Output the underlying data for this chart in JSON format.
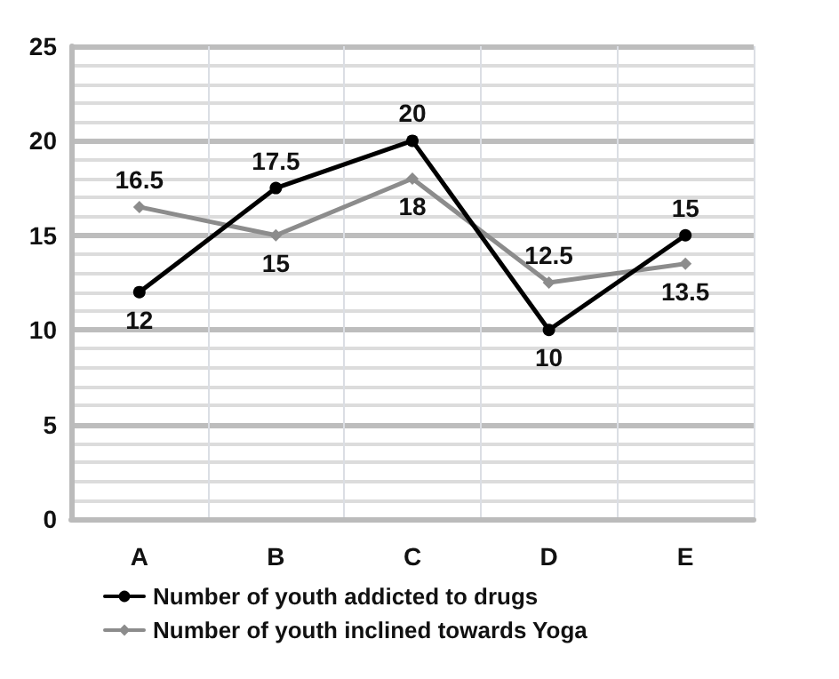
{
  "chart_data": {
    "type": "line",
    "categories": [
      "A",
      "B",
      "C",
      "D",
      "E"
    ],
    "series": [
      {
        "name": "Number of youth addicted to drugs",
        "color": "#000000",
        "marker": "circle",
        "values": [
          12,
          17.5,
          20,
          10,
          15
        ]
      },
      {
        "name": "Number of youth inclined towards Yoga",
        "color": "#8c8c8c",
        "marker": "diamond",
        "values": [
          16.5,
          15,
          18,
          12.5,
          13.5
        ]
      }
    ],
    "ylim": [
      0,
      25
    ],
    "yticks": [
      0,
      5,
      10,
      15,
      20,
      25
    ],
    "grid": true,
    "legend": "bottom",
    "data_labels": true,
    "line_style": "solid"
  }
}
